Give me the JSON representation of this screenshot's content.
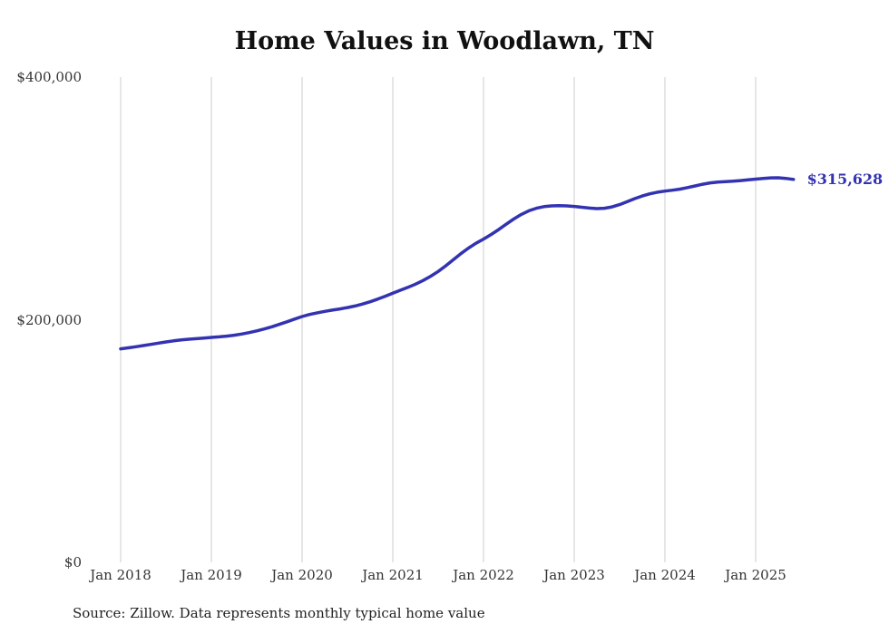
{
  "page": {
    "source_note": "Source: Zillow. Data represents monthly typical home value",
    "accent_color": "#3333b2",
    "gridline_color": "#cccccc",
    "text_color": "#333333"
  },
  "chart_data": {
    "type": "line",
    "title": "Home Values in Woodlawn, TN",
    "series_name": "Typical home value",
    "frequency": "monthly",
    "x_start": "Jan 2018",
    "x_end": "Jun 2025",
    "x_tick_labels": [
      "Jan 2018",
      "Jan 2019",
      "Jan 2020",
      "Jan 2021",
      "Jan 2022",
      "Jan 2023",
      "Jan 2024",
      "Jan 2025"
    ],
    "y_ticks": [
      {
        "value": 0,
        "label": "$0"
      },
      {
        "value": 200000,
        "label": "$200,000"
      },
      {
        "value": 400000,
        "label": "$400,000"
      }
    ],
    "ylim": [
      0,
      400000
    ],
    "grid": "vertical-only",
    "legend": "none",
    "end_label": "$315,628",
    "final_value": 315628,
    "values": [
      176000,
      176800,
      177700,
      178700,
      179700,
      180700,
      181700,
      182600,
      183300,
      183900,
      184400,
      184900,
      185400,
      185900,
      186500,
      187200,
      188200,
      189400,
      190800,
      192400,
      194200,
      196200,
      198300,
      200500,
      202600,
      204300,
      205700,
      206900,
      207900,
      208900,
      210000,
      211300,
      212900,
      214800,
      217000,
      219400,
      221900,
      224300,
      226700,
      229300,
      232300,
      235800,
      239800,
      244400,
      249400,
      254400,
      259000,
      263000,
      266500,
      270200,
      274300,
      278700,
      283000,
      286800,
      289800,
      291900,
      293200,
      293800,
      294000,
      293800,
      293400,
      292700,
      292000,
      291600,
      291900,
      293000,
      294900,
      297300,
      299800,
      302000,
      303800,
      305100,
      306000,
      306800,
      307700,
      308900,
      310300,
      311700,
      312800,
      313500,
      313900,
      314200,
      314700,
      315300,
      315900,
      316500,
      316900,
      317000,
      316500,
      315628
    ]
  }
}
